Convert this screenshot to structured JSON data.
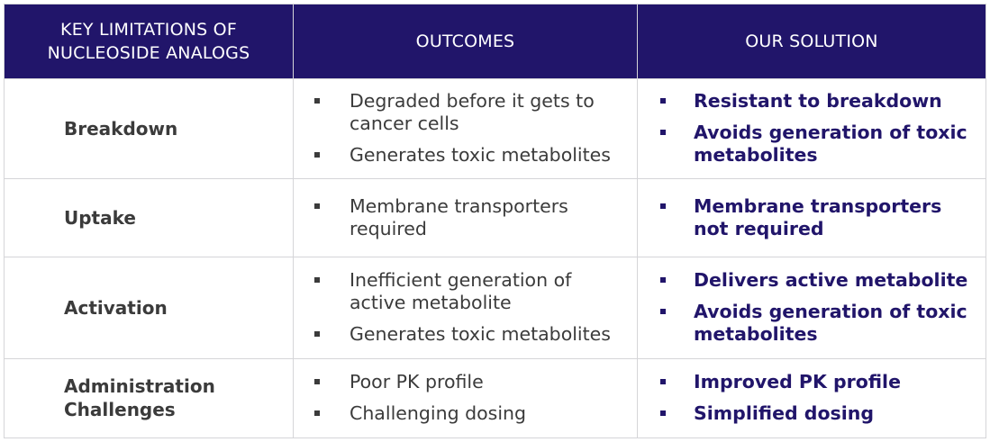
{
  "header": {
    "col1": "KEY LIMITATIONS OF NUCLEOSIDE ANALOGS",
    "col1_line1": "KEY LIMITATIONS OF",
    "col1_line2": "NUCLEOSIDE ANALOGS",
    "col2": "OUTCOMES",
    "col3": "OUR SOLUTION"
  },
  "rows": [
    {
      "limitation": "Breakdown",
      "outcomes": [
        "Degraded before it gets to cancer cells",
        "Generates toxic metabolites"
      ],
      "solutions": [
        "Resistant to breakdown",
        "Avoids generation of toxic metabolites"
      ]
    },
    {
      "limitation": "Uptake",
      "outcomes": [
        "Membrane transporters required"
      ],
      "solutions": [
        "Membrane transporters not required"
      ]
    },
    {
      "limitation": "Activation",
      "outcomes": [
        "Inefficient generation of active metabolite",
        "Generates toxic metabolites"
      ],
      "solutions": [
        "Delivers active metabolite",
        "Avoids generation of toxic metabolites"
      ]
    },
    {
      "limitation": "Administration Challenges",
      "limitation_line1": "Administration",
      "limitation_line2": "Challenges",
      "outcomes": [
        "Poor PK profile",
        "Challenging dosing"
      ],
      "solutions": [
        "Improved PK profile",
        "Simplified dosing"
      ]
    }
  ],
  "colors": {
    "header_bg": "#21156a",
    "header_text": "#ffffff",
    "outcome_text": "#3b3b3b",
    "solution_text": "#21156a",
    "border": "#d5d5d8"
  }
}
